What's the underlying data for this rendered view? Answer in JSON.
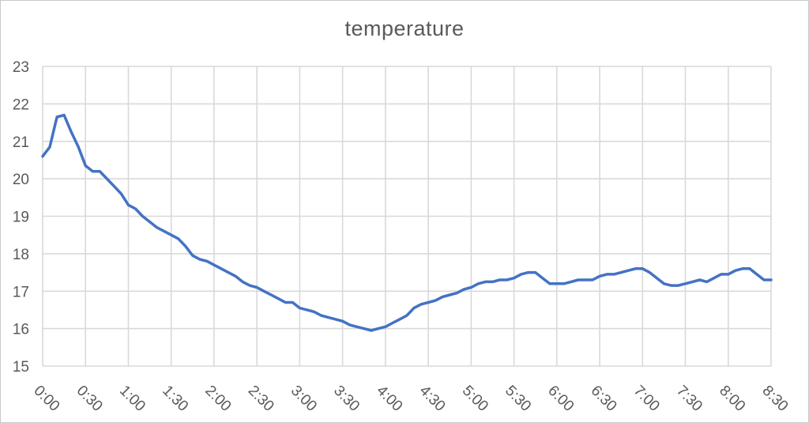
{
  "window": {
    "background": "#ffffff",
    "border_color": "#c9c9c9"
  },
  "chart_data": {
    "type": "line",
    "title": "temperature",
    "xlabel": "",
    "ylabel": "",
    "legend": "none",
    "grid": true,
    "ylim": [
      15,
      23
    ],
    "y_ticks": [
      23,
      22,
      21,
      20,
      19,
      18,
      17,
      16,
      15
    ],
    "x_tick_labels": [
      "0:00",
      "0:30",
      "1:00",
      "1:30",
      "2:00",
      "2:30",
      "3:00",
      "3:30",
      "4:00",
      "4:30",
      "5:00",
      "5:30",
      "6:00",
      "6:30",
      "7:00",
      "7:30",
      "8:00",
      "8:30"
    ],
    "x_tick_every_n_points": 6,
    "sample_interval_minutes": 5,
    "x_total_minutes": 510,
    "series_name": "temperature",
    "values": [
      20.6,
      20.85,
      21.65,
      21.7,
      21.25,
      20.85,
      20.35,
      20.2,
      20.2,
      20.0,
      19.8,
      19.6,
      19.3,
      19.2,
      19.0,
      18.85,
      18.7,
      18.6,
      18.5,
      18.4,
      18.2,
      17.95,
      17.85,
      17.8,
      17.7,
      17.6,
      17.5,
      17.4,
      17.25,
      17.15,
      17.1,
      17.0,
      16.9,
      16.8,
      16.7,
      16.7,
      16.55,
      16.5,
      16.45,
      16.35,
      16.3,
      16.25,
      16.2,
      16.1,
      16.05,
      16.0,
      15.95,
      16.0,
      16.05,
      16.15,
      16.25,
      16.35,
      16.55,
      16.65,
      16.7,
      16.75,
      16.85,
      16.9,
      16.95,
      17.05,
      17.1,
      17.2,
      17.25,
      17.25,
      17.3,
      17.3,
      17.35,
      17.45,
      17.5,
      17.5,
      17.35,
      17.2,
      17.2,
      17.2,
      17.25,
      17.3,
      17.3,
      17.3,
      17.4,
      17.45,
      17.45,
      17.5,
      17.55,
      17.6,
      17.6,
      17.5,
      17.35,
      17.2,
      17.15,
      17.15,
      17.2,
      17.25,
      17.3,
      17.25,
      17.35,
      17.45,
      17.45,
      17.55,
      17.6,
      17.6,
      17.45,
      17.3,
      17.3
    ],
    "colors": {
      "line": "#4472C4",
      "gridline": "#D9D9D9",
      "axis_text": "#595959",
      "title_text": "#595959"
    }
  }
}
